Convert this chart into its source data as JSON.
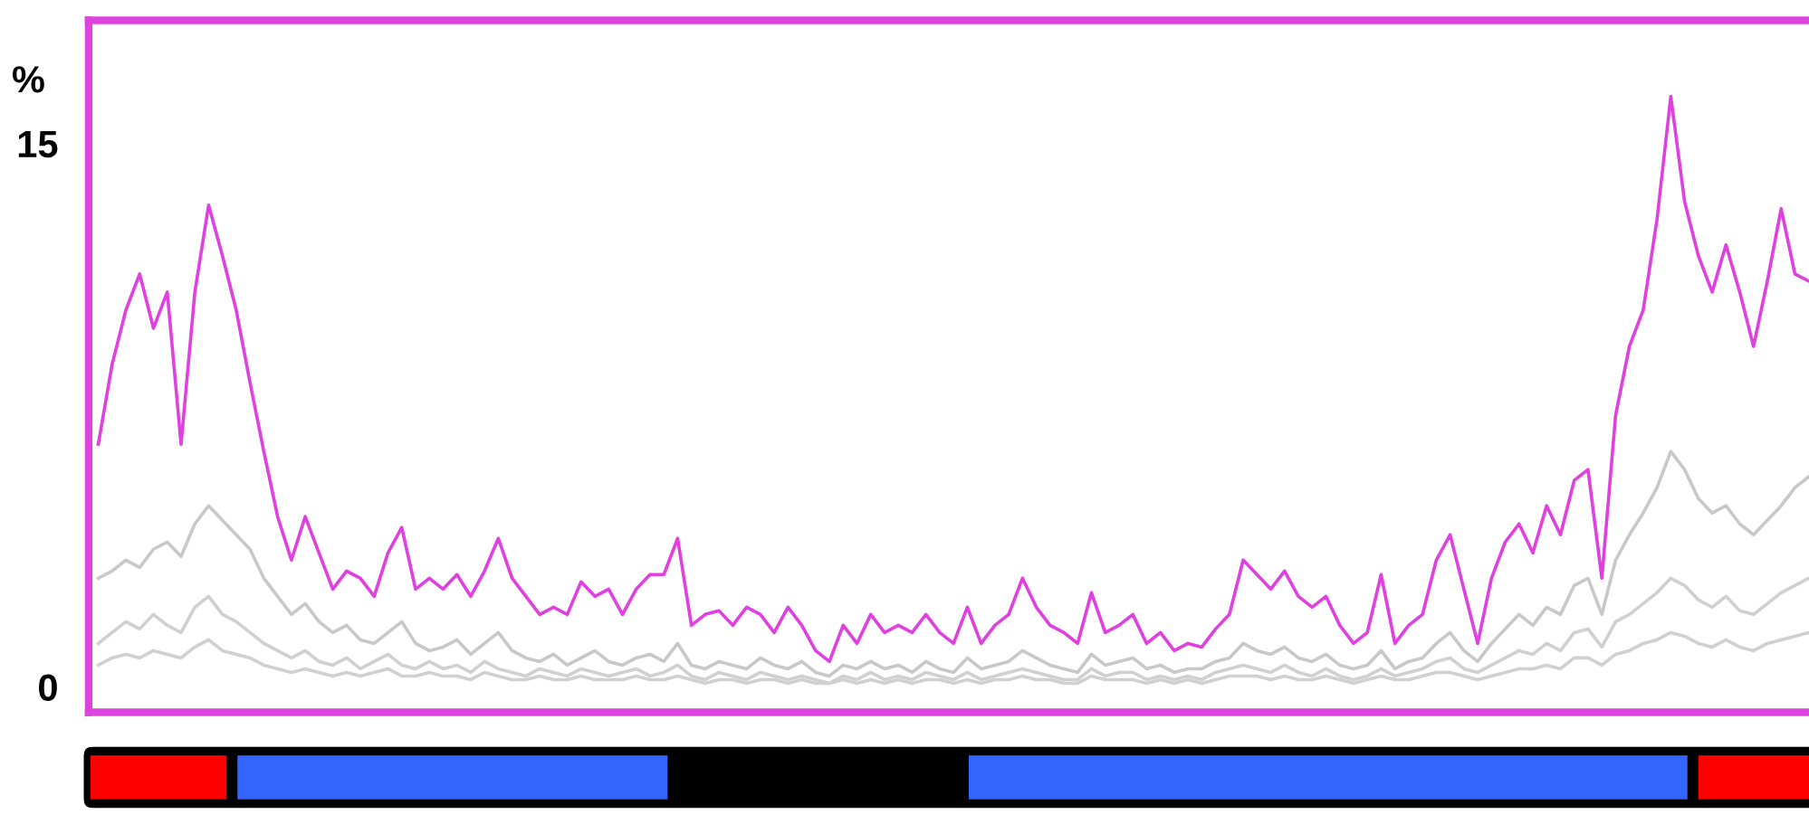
{
  "chart_data": {
    "type": "line",
    "ylabel": "%",
    "ylim": [
      -0.7,
      18.4
    ],
    "yticks": [
      0,
      15
    ],
    "tick_labels": "y",
    "grid": false,
    "legend": false,
    "marker": "none",
    "line_style": "solid",
    "categories": [
      null,
      null,
      null,
      null,
      null,
      null,
      null,
      null,
      null,
      null,
      null,
      null,
      null,
      null,
      null,
      null,
      null,
      null,
      null,
      null,
      null,
      null,
      null,
      null,
      null,
      null,
      null,
      null,
      null,
      null,
      null,
      null,
      null,
      null,
      null,
      null,
      null,
      null,
      null,
      null,
      null,
      null,
      null,
      null,
      null,
      null,
      null,
      null,
      null,
      null,
      null,
      null,
      null,
      null,
      null,
      null,
      null,
      null,
      null,
      null,
      null,
      null,
      null,
      null,
      null,
      null,
      null,
      null,
      null,
      null,
      null,
      null,
      null,
      null,
      null,
      null,
      null,
      null,
      null,
      null,
      null,
      null,
      null,
      null,
      null,
      null,
      null,
      null,
      null,
      null,
      null,
      null,
      null,
      null,
      null,
      null,
      null,
      null,
      null,
      null,
      null,
      null,
      null,
      null,
      null,
      null,
      null,
      null,
      null,
      null,
      null,
      null,
      null,
      null,
      null,
      null,
      null,
      null,
      null,
      null,
      null,
      null,
      null,
      null,
      null
    ],
    "series": [
      {
        "color": "#d0d0d0",
        "values": [
          0.6,
          0.8,
          0.9,
          0.8,
          1.0,
          0.9,
          0.8,
          1.1,
          1.3,
          1.0,
          0.9,
          0.8,
          0.6,
          0.5,
          0.4,
          0.5,
          0.4,
          0.3,
          0.4,
          0.3,
          0.4,
          0.5,
          0.3,
          0.3,
          0.4,
          0.3,
          0.3,
          0.2,
          0.4,
          0.3,
          0.2,
          0.2,
          0.3,
          0.2,
          0.2,
          0.3,
          0.2,
          0.2,
          0.2,
          0.3,
          0.2,
          0.2,
          0.3,
          0.2,
          0.1,
          0.2,
          0.2,
          0.1,
          0.2,
          0.2,
          0.1,
          0.2,
          0.1,
          0.1,
          0.2,
          0.1,
          0.2,
          0.1,
          0.2,
          0.1,
          0.2,
          0.2,
          0.1,
          0.2,
          0.1,
          0.2,
          0.2,
          0.3,
          0.2,
          0.2,
          0.1,
          0.1,
          0.3,
          0.2,
          0.2,
          0.2,
          0.1,
          0.2,
          0.1,
          0.2,
          0.1,
          0.2,
          0.3,
          0.3,
          0.3,
          0.2,
          0.3,
          0.2,
          0.2,
          0.3,
          0.2,
          0.1,
          0.2,
          0.3,
          0.2,
          0.2,
          0.3,
          0.4,
          0.4,
          0.3,
          0.2,
          0.3,
          0.4,
          0.5,
          0.5,
          0.6,
          0.5,
          0.8,
          0.8,
          0.6,
          0.9,
          1.0,
          1.2,
          1.3,
          1.5,
          1.4,
          1.2,
          1.1,
          1.3,
          1.1,
          1.0,
          1.2,
          1.3,
          1.4,
          1.5
        ]
      },
      {
        "color": "#d0d0d0",
        "values": [
          1.2,
          1.5,
          1.8,
          1.6,
          2.0,
          1.7,
          1.5,
          2.2,
          2.5,
          2.0,
          1.8,
          1.5,
          1.2,
          1.0,
          0.8,
          1.0,
          0.7,
          0.6,
          0.8,
          0.5,
          0.7,
          0.9,
          0.6,
          0.5,
          0.7,
          0.5,
          0.6,
          0.4,
          0.7,
          0.5,
          0.4,
          0.3,
          0.5,
          0.4,
          0.3,
          0.5,
          0.4,
          0.3,
          0.4,
          0.5,
          0.3,
          0.4,
          0.6,
          0.3,
          0.2,
          0.4,
          0.3,
          0.2,
          0.4,
          0.3,
          0.2,
          0.3,
          0.2,
          0.1,
          0.3,
          0.2,
          0.4,
          0.2,
          0.3,
          0.2,
          0.4,
          0.3,
          0.2,
          0.4,
          0.2,
          0.3,
          0.4,
          0.5,
          0.4,
          0.3,
          0.2,
          0.2,
          0.5,
          0.3,
          0.4,
          0.4,
          0.2,
          0.3,
          0.2,
          0.3,
          0.2,
          0.4,
          0.5,
          0.6,
          0.5,
          0.4,
          0.6,
          0.4,
          0.3,
          0.5,
          0.3,
          0.2,
          0.3,
          0.5,
          0.3,
          0.4,
          0.5,
          0.7,
          0.8,
          0.5,
          0.4,
          0.6,
          0.8,
          1.0,
          0.9,
          1.2,
          1.0,
          1.5,
          1.6,
          1.1,
          1.8,
          2.0,
          2.3,
          2.6,
          3.0,
          2.8,
          2.4,
          2.2,
          2.5,
          2.1,
          2.0,
          2.3,
          2.6,
          2.8,
          3.0
        ]
      },
      {
        "color": "#c8c8c8",
        "values": [
          3.0,
          3.2,
          3.5,
          3.3,
          3.8,
          4.0,
          3.6,
          4.5,
          5.0,
          4.6,
          4.2,
          3.8,
          3.0,
          2.5,
          2.0,
          2.3,
          1.8,
          1.5,
          1.7,
          1.3,
          1.2,
          1.5,
          1.8,
          1.2,
          1.0,
          1.1,
          1.3,
          0.9,
          1.2,
          1.5,
          1.0,
          0.8,
          0.7,
          0.9,
          0.6,
          0.8,
          1.0,
          0.7,
          0.6,
          0.8,
          0.9,
          0.7,
          1.2,
          0.6,
          0.5,
          0.7,
          0.6,
          0.5,
          0.8,
          0.6,
          0.5,
          0.7,
          0.4,
          0.3,
          0.6,
          0.5,
          0.7,
          0.5,
          0.6,
          0.4,
          0.7,
          0.5,
          0.4,
          0.8,
          0.5,
          0.6,
          0.7,
          1.0,
          0.8,
          0.6,
          0.5,
          0.4,
          0.9,
          0.6,
          0.7,
          0.8,
          0.5,
          0.6,
          0.4,
          0.5,
          0.5,
          0.7,
          0.8,
          1.2,
          1.0,
          0.9,
          1.1,
          0.8,
          0.7,
          0.9,
          0.6,
          0.5,
          0.6,
          1.0,
          0.5,
          0.7,
          0.8,
          1.2,
          1.5,
          1.0,
          0.7,
          1.2,
          1.6,
          2.0,
          1.7,
          2.2,
          2.0,
          2.8,
          3.0,
          2.0,
          3.5,
          4.2,
          4.8,
          5.5,
          6.5,
          6.0,
          5.2,
          4.8,
          5.0,
          4.5,
          4.2,
          4.6,
          5.0,
          5.5,
          5.8
        ]
      },
      {
        "color": "#e040e0",
        "values": [
          6.7,
          8.9,
          10.4,
          11.4,
          9.9,
          10.9,
          6.7,
          10.9,
          13.3,
          11.9,
          10.4,
          8.4,
          6.5,
          4.7,
          3.5,
          4.7,
          3.7,
          2.7,
          3.2,
          3.0,
          2.5,
          3.7,
          4.4,
          2.7,
          3.0,
          2.7,
          3.1,
          2.5,
          3.2,
          4.1,
          3.0,
          2.5,
          2.0,
          2.2,
          2.0,
          2.9,
          2.5,
          2.7,
          2.0,
          2.7,
          3.1,
          3.1,
          4.1,
          1.7,
          2.0,
          2.1,
          1.7,
          2.2,
          2.0,
          1.5,
          2.2,
          1.7,
          1.0,
          0.7,
          1.7,
          1.2,
          2.0,
          1.5,
          1.7,
          1.5,
          2.0,
          1.5,
          1.2,
          2.2,
          1.2,
          1.7,
          2.0,
          3.0,
          2.2,
          1.7,
          1.5,
          1.2,
          2.6,
          1.5,
          1.7,
          2.0,
          1.2,
          1.5,
          1.0,
          1.2,
          1.1,
          1.6,
          2.0,
          3.5,
          3.1,
          2.7,
          3.2,
          2.5,
          2.2,
          2.5,
          1.7,
          1.2,
          1.5,
          3.1,
          1.2,
          1.7,
          2.0,
          3.5,
          4.2,
          2.7,
          1.2,
          3.0,
          4.0,
          4.5,
          3.7,
          5.0,
          4.2,
          5.7,
          6.0,
          3.0,
          7.5,
          9.4,
          10.4,
          12.9,
          16.3,
          13.4,
          11.9,
          10.9,
          12.2,
          10.9,
          9.4,
          11.2,
          13.2,
          11.4,
          11.2
        ]
      }
    ]
  }
}
